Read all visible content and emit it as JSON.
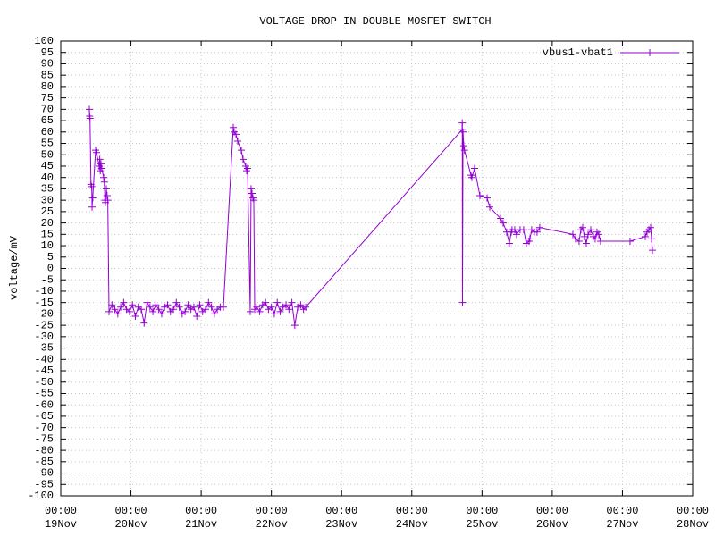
{
  "chart_data": {
    "type": "line",
    "title": "VOLTAGE DROP IN DOUBLE MOSFET SWITCH",
    "ylabel": "voltage/mV",
    "legend": "top right",
    "grid": true,
    "x": [
      "09:47 19Nov",
      "09:52 19Nov",
      "10:00 19Nov",
      "10:20 19Nov",
      "10:35 19Nov",
      "10:42 19Nov",
      "10:55 19Nov",
      "11:55 19Nov",
      "12:13 19Nov",
      "13:08 19Nov",
      "13:20 19Nov",
      "13:30 19Nov",
      "13:45 19Nov",
      "14:00 19Nov",
      "14:40 19Nov",
      "14:55 19Nov",
      "15:05 19Nov",
      "15:17 19Nov",
      "15:35 19Nov",
      "15:50 19Nov",
      "16:05 19Nov",
      "16:30 19Nov",
      "17:30 19Nov",
      "18:30 19Nov",
      "19:30 19Nov",
      "20:30 19Nov",
      "21:30 19Nov",
      "22:30 19Nov",
      "23:30 19Nov",
      "00:30 20Nov",
      "01:30 20Nov",
      "02:30 20Nov",
      "03:30 20Nov",
      "04:30 20Nov",
      "05:30 20Nov",
      "06:30 20Nov",
      "07:30 20Nov",
      "08:30 20Nov",
      "09:30 20Nov",
      "10:30 20Nov",
      "11:30 20Nov",
      "12:30 20Nov",
      "13:30 20Nov",
      "14:30 20Nov",
      "15:30 20Nov",
      "16:30 20Nov",
      "17:30 20Nov",
      "18:30 20Nov",
      "19:30 20Nov",
      "20:30 20Nov",
      "21:30 20Nov",
      "22:30 20Nov",
      "23:30 20Nov",
      "00:30 21Nov",
      "01:30 21Nov",
      "02:30 21Nov",
      "03:30 21Nov",
      "04:30 21Nov",
      "05:30 21Nov",
      "06:30 21Nov",
      "07:36 21Nov",
      "10:58 21Nov",
      "11:16 21Nov",
      "11:53 21Nov",
      "12:29 21Nov",
      "13:43 21Nov",
      "14:19 21Nov",
      "15:14 21Nov",
      "15:33 21Nov",
      "15:51 21Nov",
      "16:46 21Nov",
      "17:04 21Nov",
      "17:23 21Nov",
      "17:41 21Nov",
      "17:59 21Nov",
      "18:18 21Nov",
      "19:00 21Nov",
      "20:00 21Nov",
      "21:00 21Nov",
      "22:00 21Nov",
      "23:00 21Nov",
      "00:00 22Nov",
      "01:00 22Nov",
      "02:00 22Nov",
      "03:00 22Nov",
      "04:00 22Nov",
      "05:00 22Nov",
      "06:00 22Nov",
      "07:00 22Nov",
      "08:00 22Nov",
      "09:00 22Nov",
      "10:00 22Nov",
      "11:00 22Nov",
      "11:45 22Nov",
      "17:11 24Nov",
      "17:15 24Nov",
      "17:20 24Nov",
      "17:30 24Nov",
      "17:45 24Nov",
      "18:00 24Nov",
      "20:14 24Nov",
      "20:32 24Nov",
      "21:27 24Nov",
      "23:17 24Nov",
      "01:44 25Nov",
      "02:39 25Nov",
      "06:18 25Nov",
      "07:13 25Nov",
      "08:26 25Nov",
      "09:21 25Nov",
      "09:58 25Nov",
      "10:16 25Nov",
      "11:11 25Nov",
      "11:48 25Nov",
      "13:01 25Nov",
      "14:14 25Nov",
      "15:09 25Nov",
      "16:04 25Nov",
      "16:22 25Nov",
      "16:59 25Nov",
      "17:54 25Nov",
      "18:49 25Nov",
      "19:44 25Nov",
      "07:03 26Nov",
      "07:58 26Nov",
      "09:11 26Nov",
      "09:48 26Nov",
      "10:25 26Nov",
      "11:01 26Nov",
      "11:38 26Nov",
      "12:15 26Nov",
      "13:10 26Nov",
      "14:04 26Nov",
      "14:41 26Nov",
      "15:18 26Nov",
      "15:55 26Nov",
      "16:31 26Nov",
      "02:36 27Nov",
      "07:48 27Nov",
      "08:25 27Nov",
      "09:02 27Nov",
      "09:39 27Nov",
      "09:57 27Nov",
      "10:15 27Nov"
    ],
    "series": [
      {
        "name": "vbus1-vbat1",
        "color": "#9400d3",
        "values": [
          70,
          67,
          66,
          37,
          36,
          27,
          31,
          52,
          51,
          45,
          48,
          43,
          46,
          44,
          40,
          38,
          30,
          29,
          35,
          32,
          30,
          -19,
          -16,
          -18,
          -20,
          -17,
          -15,
          -18,
          -19,
          -16,
          -21,
          -17,
          -18,
          -24,
          -15,
          -17,
          -19,
          -16,
          -18,
          -20,
          -17,
          -16,
          -19,
          -18,
          -15,
          -17,
          -20,
          -19,
          -16,
          -18,
          -17,
          -21,
          -16,
          -19,
          -18,
          -15,
          -17,
          -20,
          -18,
          -17,
          -17,
          62,
          60,
          59,
          56,
          52,
          48,
          45,
          43,
          44,
          -19,
          35,
          33,
          31,
          30,
          -18,
          -17,
          -19,
          -16,
          -15,
          -18,
          -17,
          -20,
          -15,
          -19,
          -17,
          -16,
          -18,
          -15,
          -25,
          -17,
          -16,
          -18,
          -17,
          61,
          64,
          -15,
          60,
          54,
          52,
          41,
          40,
          44,
          32,
          31,
          27,
          22,
          20,
          16,
          11,
          16,
          17,
          17,
          15,
          17,
          17,
          11,
          12,
          13,
          17,
          16,
          16,
          18,
          15,
          13,
          12,
          17,
          18,
          14,
          11,
          15,
          17,
          14,
          13,
          16,
          15,
          12,
          12,
          14,
          16,
          17,
          18,
          13,
          8
        ]
      }
    ],
    "xlim": [
      "00:00 19Nov",
      "00:00 28Nov"
    ],
    "xticks": [
      "00:00 19Nov",
      "00:00 20Nov",
      "00:00 21Nov",
      "00:00 22Nov",
      "00:00 23Nov",
      "00:00 24Nov",
      "00:00 25Nov",
      "00:00 26Nov",
      "00:00 27Nov",
      "00:00 28Nov"
    ],
    "ylim": [
      -100,
      100
    ],
    "yticks": [
      -100,
      -95,
      -90,
      -85,
      -80,
      -75,
      -70,
      -65,
      -60,
      -55,
      -50,
      -45,
      -40,
      -35,
      -30,
      -25,
      -20,
      -15,
      -10,
      -5,
      0,
      5,
      10,
      15,
      20,
      25,
      30,
      35,
      40,
      45,
      50,
      55,
      60,
      65,
      70,
      75,
      80,
      85,
      90,
      95,
      100
    ]
  }
}
